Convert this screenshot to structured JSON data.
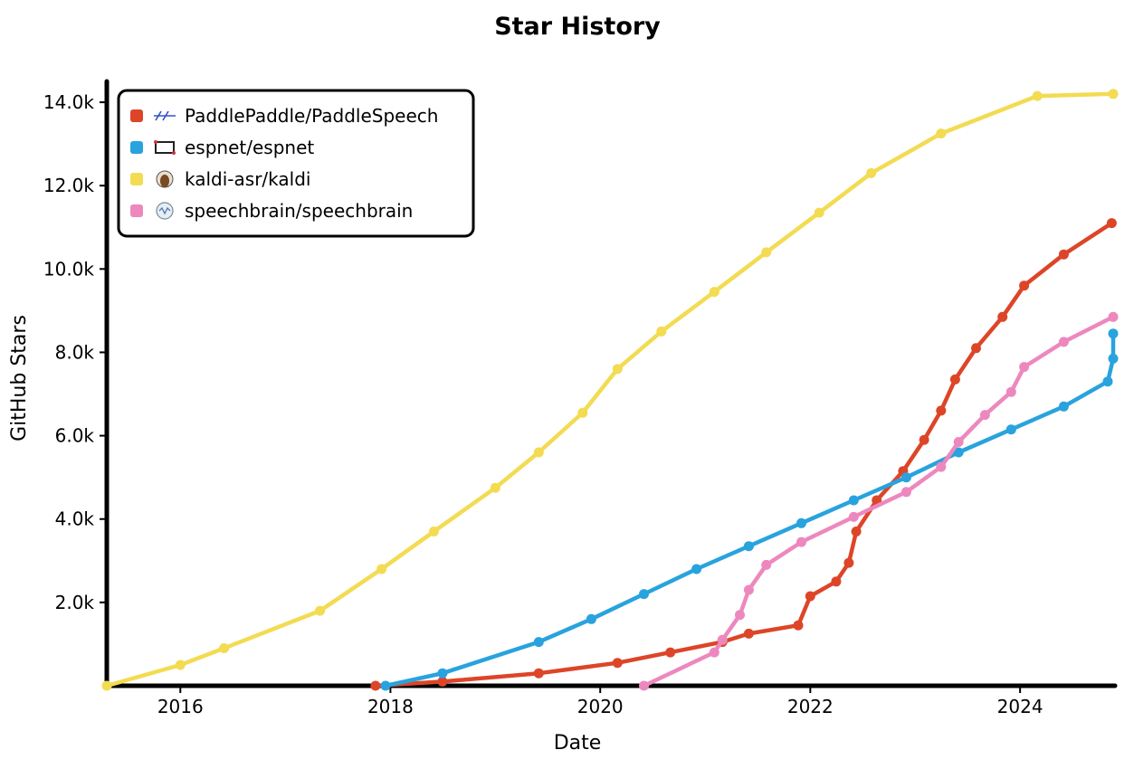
{
  "chart_data": {
    "type": "line",
    "title": "Star History",
    "xlabel": "Date",
    "ylabel": "GitHub Stars",
    "xlim": [
      "2015-04-20",
      "2024-11-20"
    ],
    "ylim": [
      0,
      14500
    ],
    "x_ticks": [
      {
        "date": "2016-01-01",
        "label": "2016"
      },
      {
        "date": "2018-01-01",
        "label": "2018"
      },
      {
        "date": "2020-01-01",
        "label": "2020"
      },
      {
        "date": "2022-01-01",
        "label": "2022"
      },
      {
        "date": "2024-01-01",
        "label": "2024"
      }
    ],
    "y_ticks": [
      {
        "value": 2000,
        "label": "2.0k"
      },
      {
        "value": 4000,
        "label": "4.0k"
      },
      {
        "value": 6000,
        "label": "6.0k"
      },
      {
        "value": 8000,
        "label": "8.0k"
      },
      {
        "value": 10000,
        "label": "10.0k"
      },
      {
        "value": 12000,
        "label": "12.0k"
      },
      {
        "value": 14000,
        "label": "14.0k"
      }
    ],
    "grid": false,
    "legend_position": "top-left",
    "series": [
      {
        "name": "PaddlePaddle/PaddleSpeech",
        "color": "#dd4528",
        "icon": "paddlespeech-avatar-icon",
        "points": [
          [
            "2017-11-10",
            0
          ],
          [
            "2018-07-01",
            100
          ],
          [
            "2019-06-01",
            300
          ],
          [
            "2020-03-01",
            550
          ],
          [
            "2020-09-01",
            800
          ],
          [
            "2021-03-01",
            1050
          ],
          [
            "2021-06-01",
            1250
          ],
          [
            "2021-11-20",
            1450
          ],
          [
            "2022-01-01",
            2150
          ],
          [
            "2022-04-01",
            2500
          ],
          [
            "2022-05-15",
            2950
          ],
          [
            "2022-06-10",
            3700
          ],
          [
            "2022-08-20",
            4450
          ],
          [
            "2022-11-20",
            5150
          ],
          [
            "2023-02-01",
            5900
          ],
          [
            "2023-04-01",
            6600
          ],
          [
            "2023-05-20",
            7350
          ],
          [
            "2023-08-01",
            8100
          ],
          [
            "2023-11-01",
            8850
          ],
          [
            "2024-01-15",
            9600
          ],
          [
            "2024-06-01",
            10350
          ],
          [
            "2024-11-15",
            11100
          ]
        ]
      },
      {
        "name": "espnet/espnet",
        "color": "#28a3dd",
        "icon": "espnet-avatar-icon",
        "points": [
          [
            "2017-12-15",
            0
          ],
          [
            "2018-07-01",
            300
          ],
          [
            "2019-06-01",
            1050
          ],
          [
            "2019-12-01",
            1600
          ],
          [
            "2020-06-01",
            2200
          ],
          [
            "2020-12-01",
            2800
          ],
          [
            "2021-06-01",
            3350
          ],
          [
            "2021-12-01",
            3900
          ],
          [
            "2022-06-01",
            4450
          ],
          [
            "2022-12-01",
            5000
          ],
          [
            "2023-06-01",
            5600
          ],
          [
            "2023-12-01",
            6150
          ],
          [
            "2024-06-01",
            6700
          ],
          [
            "2024-11-01",
            7300
          ],
          [
            "2024-11-20",
            7850
          ],
          [
            "2024-11-20",
            8450
          ]
        ]
      },
      {
        "name": "kaldi-asr/kaldi",
        "color": "#f3db52",
        "icon": "kaldi-avatar-icon",
        "points": [
          [
            "2015-04-20",
            0
          ],
          [
            "2016-01-01",
            500
          ],
          [
            "2016-06-01",
            900
          ],
          [
            "2017-05-01",
            1800
          ],
          [
            "2017-12-01",
            2800
          ],
          [
            "2018-06-01",
            3700
          ],
          [
            "2019-01-01",
            4750
          ],
          [
            "2019-06-01",
            5600
          ],
          [
            "2019-11-01",
            6550
          ],
          [
            "2020-03-01",
            7600
          ],
          [
            "2020-08-01",
            8500
          ],
          [
            "2021-02-01",
            9450
          ],
          [
            "2021-08-01",
            10400
          ],
          [
            "2022-02-01",
            11350
          ],
          [
            "2022-08-01",
            12300
          ],
          [
            "2023-04-01",
            13250
          ],
          [
            "2024-03-01",
            14150
          ],
          [
            "2024-11-20",
            14200
          ]
        ]
      },
      {
        "name": "speechbrain/speechbrain",
        "color": "#ed88be",
        "icon": "speechbrain-avatar-icon",
        "points": [
          [
            "2020-06-01",
            0
          ],
          [
            "2021-02-01",
            800
          ],
          [
            "2021-03-01",
            1100
          ],
          [
            "2021-05-01",
            1700
          ],
          [
            "2021-06-01",
            2300
          ],
          [
            "2021-08-01",
            2900
          ],
          [
            "2021-12-01",
            3450
          ],
          [
            "2022-06-01",
            4050
          ],
          [
            "2022-12-01",
            4650
          ],
          [
            "2023-04-01",
            5250
          ],
          [
            "2023-06-01",
            5850
          ],
          [
            "2023-09-01",
            6500
          ],
          [
            "2023-12-01",
            7050
          ],
          [
            "2024-01-15",
            7650
          ],
          [
            "2024-06-01",
            8250
          ],
          [
            "2024-11-20",
            8850
          ]
        ]
      }
    ]
  }
}
